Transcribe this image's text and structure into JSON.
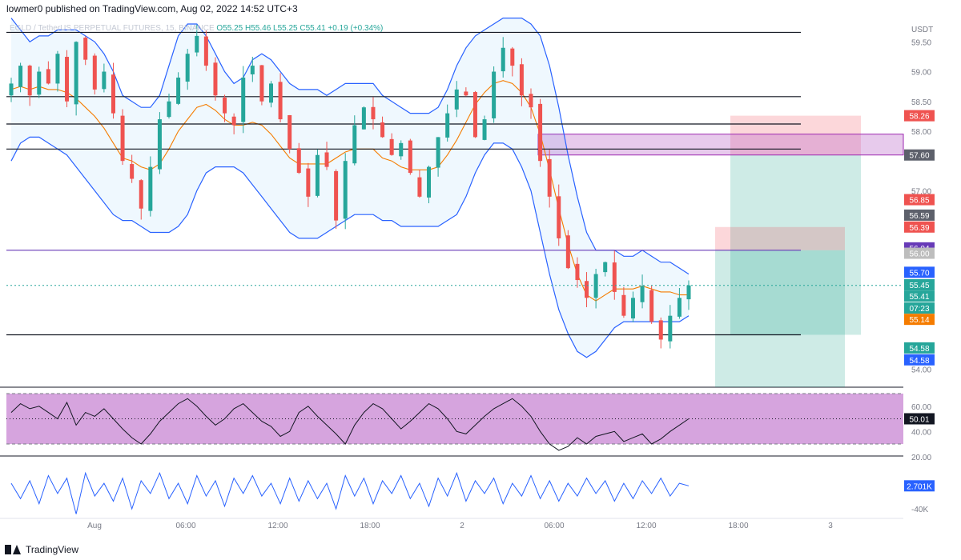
{
  "header": {
    "publisher": "lowmer0 published on TradingView.com, Aug 02, 2022 14:52 UTC+3"
  },
  "symbol": {
    "name": "EGLD / TetherUS PERPETUAL FUTURES, 15, BINANCE",
    "ohlc": "O55.25  H55.46  L55.25  C55.41  +0.19 (+0.34%)"
  },
  "footer": {
    "brand": "TradingView"
  },
  "colors": {
    "up": "#26a69a",
    "down": "#ef5350",
    "band": "#2962ff",
    "basis": "#f57c00",
    "rsi_fill": "#ce93d8",
    "cvd": "#2962ff",
    "zone": "#e1bee7"
  },
  "chart_data": {
    "type": "candlestick",
    "price_axis": {
      "unit": "USDT",
      "ticks": [
        "59.50",
        "59.00",
        "58.50",
        "58.00",
        "57.00",
        "54.00"
      ],
      "ylim": [
        53.7,
        59.8
      ]
    },
    "time_axis": {
      "ticks": [
        "Aug",
        "06:00",
        "12:00",
        "18:00",
        "2",
        "06:00",
        "12:00",
        "18:00",
        "3"
      ]
    },
    "close_path": [
      58.8,
      59.1,
      58.6,
      59.0,
      58.8,
      59.3,
      58.5,
      59.5,
      59.2,
      58.7,
      59.0,
      58.3,
      57.5,
      57.2,
      56.7,
      57.4,
      58.2,
      58.5,
      58.9,
      59.3,
      59.6,
      59.1,
      58.6,
      58.3,
      58.1,
      58.9,
      59.1,
      58.5,
      58.8,
      58.2,
      57.7,
      57.3,
      56.9,
      57.6,
      57.4,
      56.5,
      57.5,
      58.1,
      58.4,
      58.2,
      57.9,
      57.6,
      57.8,
      57.3,
      56.9,
      57.4,
      57.9,
      58.3,
      58.7,
      58.6,
      57.9,
      58.2,
      59.0,
      59.4,
      59.1,
      58.6,
      58.4,
      57.5,
      56.9,
      56.2,
      55.7,
      55.5,
      55.2,
      55.6,
      55.8,
      55.3,
      54.9,
      55.2,
      55.4,
      54.8,
      54.5,
      54.9,
      55.2,
      55.41
    ],
    "bollinger": {
      "upper": [
        59.9,
        59.7,
        59.5,
        59.6,
        59.6,
        59.7,
        59.7,
        59.7,
        59.6,
        59.5,
        59.3,
        59.0,
        58.6,
        58.5,
        58.4,
        58.4,
        58.6,
        59.1,
        59.6,
        59.8,
        59.8,
        59.6,
        59.3,
        59.0,
        58.8,
        58.9,
        59.2,
        59.3,
        59.2,
        59.0,
        58.8,
        58.7,
        58.7,
        58.7,
        58.6,
        58.7,
        58.8,
        58.8,
        58.8,
        58.8,
        58.6,
        58.5,
        58.4,
        58.3,
        58.3,
        58.3,
        58.4,
        58.7,
        59.1,
        59.4,
        59.6,
        59.7,
        59.8,
        59.9,
        59.9,
        59.9,
        59.8,
        59.6,
        59.1,
        58.4,
        57.6,
        56.9,
        56.3,
        56.0,
        56.0,
        56.0,
        55.9,
        55.9,
        56.0,
        55.9,
        55.8,
        55.8,
        55.7,
        55.6
      ],
      "lower": [
        57.5,
        57.8,
        57.9,
        57.9,
        57.8,
        57.7,
        57.6,
        57.4,
        57.2,
        57.0,
        56.8,
        56.6,
        56.5,
        56.5,
        56.4,
        56.3,
        56.3,
        56.3,
        56.4,
        56.6,
        57.0,
        57.3,
        57.4,
        57.4,
        57.4,
        57.3,
        57.1,
        56.9,
        56.7,
        56.5,
        56.3,
        56.2,
        56.2,
        56.2,
        56.3,
        56.4,
        56.5,
        56.6,
        56.6,
        56.6,
        56.5,
        56.5,
        56.4,
        56.4,
        56.4,
        56.4,
        56.4,
        56.5,
        56.6,
        56.9,
        57.3,
        57.6,
        57.8,
        57.8,
        57.7,
        57.4,
        57.0,
        56.3,
        55.6,
        55.0,
        54.6,
        54.3,
        54.2,
        54.3,
        54.5,
        54.7,
        54.8,
        54.8,
        54.8,
        54.8,
        54.8,
        54.8,
        54.8,
        54.9
      ]
    },
    "horizontal_levels": [
      {
        "price": 59.66,
        "color": "#131722"
      },
      {
        "price": 58.58,
        "color": "#131722"
      },
      {
        "price": 58.12,
        "color": "#131722"
      },
      {
        "price": 57.7,
        "color": "#131722"
      },
      {
        "price": 56.0,
        "color": "#673ab7"
      },
      {
        "price": 54.58,
        "color": "#131722"
      }
    ],
    "current_price": 55.41,
    "zone": {
      "from": 57.6,
      "to": 57.95
    },
    "positions": [
      {
        "stop": 58.26,
        "entry": 57.6,
        "target": 54.58
      },
      {
        "stop": 56.39,
        "entry": 56.0,
        "target": 53.7
      }
    ],
    "price_tags": [
      {
        "label": "58.26",
        "price": 58.26,
        "color": "#ef5350"
      },
      {
        "label": "57.60",
        "price": 57.6,
        "color": "#5d606b"
      },
      {
        "label": "56.85",
        "price": 56.85,
        "color": "#ef5350"
      },
      {
        "label": "56.59",
        "price": 56.59,
        "color": "#5d606b"
      },
      {
        "label": "56.39",
        "price": 56.39,
        "color": "#ef5350"
      },
      {
        "label": "56.04",
        "price": 56.04,
        "color": "#673ab7"
      },
      {
        "label": "56.00",
        "price": 55.95,
        "color": "#bdbdbd"
      },
      {
        "label": "55.70",
        "price": 55.63,
        "color": "#2962ff"
      },
      {
        "label": "55.45",
        "price": 55.42,
        "color": "#26a69a"
      },
      {
        "label": "55.41",
        "price": 55.23,
        "color": "#26a69a"
      },
      {
        "label": "07:23",
        "price": 55.03,
        "color": "#26a69a"
      },
      {
        "label": "55.14",
        "price": 54.84,
        "color": "#f57c00"
      },
      {
        "label": "54.58",
        "price": 54.36,
        "color": "#26a69a"
      },
      {
        "label": "54.58",
        "price": 54.16,
        "color": "#2962ff"
      }
    ],
    "rsi": {
      "ticks": [
        "60.00",
        "40.00",
        "20.00"
      ],
      "ylim": [
        20,
        70
      ],
      "upper_band": 70,
      "lower_band": 30,
      "current": 50.01,
      "current_label": "50.01",
      "values": [
        55,
        62,
        58,
        60,
        55,
        50,
        63,
        45,
        55,
        52,
        58,
        50,
        42,
        35,
        30,
        38,
        48,
        55,
        62,
        66,
        60,
        52,
        45,
        50,
        58,
        62,
        55,
        48,
        44,
        36,
        40,
        55,
        60,
        52,
        45,
        38,
        30,
        45,
        55,
        62,
        58,
        50,
        42,
        48,
        55,
        62,
        58,
        50,
        40,
        38,
        45,
        52,
        58,
        62,
        66,
        60,
        52,
        40,
        30,
        25,
        28,
        35,
        30,
        36,
        38,
        40,
        32,
        35,
        38,
        30,
        34,
        40,
        45,
        50
      ]
    },
    "cvd": {
      "ticks": [
        "-40K"
      ],
      "current_label": "2.701K",
      "values": [
        2,
        -4,
        3,
        -6,
        5,
        -2,
        4,
        -10,
        6,
        -3,
        2,
        -5,
        4,
        -8,
        3,
        -2,
        6,
        -4,
        2,
        -6,
        5,
        -3,
        3,
        -7,
        4,
        -2,
        5,
        -3,
        2,
        -6,
        4,
        -5,
        3,
        -4,
        2,
        -8,
        5,
        -3,
        4,
        -6,
        3,
        -2,
        5,
        -4,
        2,
        -7,
        4,
        -3,
        6,
        -5,
        3,
        -2,
        4,
        -6,
        2,
        -3,
        5,
        -4,
        3,
        -5,
        2,
        -3,
        4,
        -2,
        3,
        -5,
        2,
        -4,
        3,
        -2,
        4,
        -3,
        2,
        1
      ]
    }
  }
}
